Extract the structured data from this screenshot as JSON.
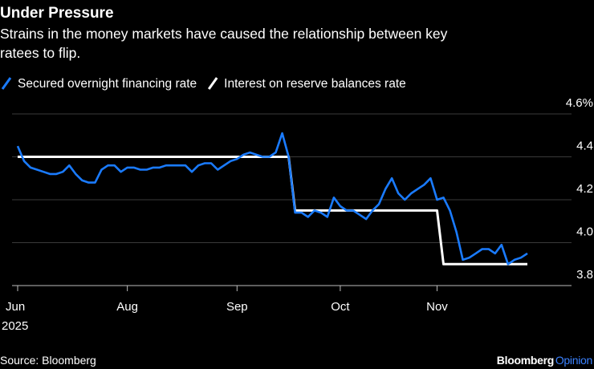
{
  "chart_data": {
    "type": "line",
    "title": "Under Pressure",
    "subtitle": [
      "Strains in the money markets have caused the relationship between key",
      "ratees to flip."
    ],
    "source": "Source: Bloomberg",
    "brand": [
      "Bloomberg",
      "Opinion"
    ],
    "year": "2025",
    "categories": [
      "Jun",
      null,
      null,
      null,
      null,
      null,
      null,
      null,
      null,
      null,
      null,
      null,
      null,
      null,
      null,
      null,
      null,
      "Aug",
      null,
      null,
      null,
      null,
      null,
      null,
      null,
      null,
      null,
      null,
      null,
      null,
      null,
      null,
      null,
      null,
      "Sep",
      null,
      null,
      null,
      null,
      null,
      null,
      null,
      null,
      null,
      null,
      null,
      null,
      null,
      null,
      null,
      "Oct",
      null,
      null,
      null,
      null,
      null,
      null,
      null,
      null,
      null,
      null,
      null,
      null,
      null,
      null,
      "Nov",
      null,
      null,
      null,
      null,
      null,
      null,
      null,
      null,
      null,
      null,
      null,
      null,
      null,
      null
    ],
    "series": [
      {
        "name": "Secured overnight financing rate",
        "color": "#1a7bff",
        "values": [
          4.45,
          4.38,
          4.35,
          4.34,
          4.33,
          4.32,
          4.32,
          4.33,
          4.36,
          4.32,
          4.29,
          4.28,
          4.28,
          4.34,
          4.36,
          4.36,
          4.33,
          4.35,
          4.35,
          4.34,
          4.34,
          4.35,
          4.35,
          4.36,
          4.36,
          4.36,
          4.36,
          4.33,
          4.36,
          4.37,
          4.37,
          4.34,
          4.36,
          4.38,
          4.39,
          4.41,
          4.42,
          4.41,
          4.4,
          4.4,
          4.42,
          4.51,
          4.4,
          4.14,
          4.14,
          4.12,
          4.15,
          4.14,
          4.12,
          4.21,
          4.17,
          4.15,
          4.15,
          4.13,
          4.11,
          4.15,
          4.18,
          4.25,
          4.3,
          4.23,
          4.2,
          4.23,
          4.25,
          4.27,
          4.3,
          4.2,
          4.21,
          4.15,
          4.05,
          3.92,
          3.93,
          3.95,
          3.97,
          3.97,
          3.95,
          3.99,
          3.9,
          3.92,
          3.93,
          3.95
        ]
      },
      {
        "name": "Interest on reserve balances rate",
        "color": "#ffffff",
        "values": [
          4.4,
          4.4,
          4.4,
          4.4,
          4.4,
          4.4,
          4.4,
          4.4,
          4.4,
          4.4,
          4.4,
          4.4,
          4.4,
          4.4,
          4.4,
          4.4,
          4.4,
          4.4,
          4.4,
          4.4,
          4.4,
          4.4,
          4.4,
          4.4,
          4.4,
          4.4,
          4.4,
          4.4,
          4.4,
          4.4,
          4.4,
          4.4,
          4.4,
          4.4,
          4.4,
          4.4,
          4.4,
          4.4,
          4.4,
          4.4,
          4.4,
          4.4,
          4.4,
          4.15,
          4.15,
          4.15,
          4.15,
          4.15,
          4.15,
          4.15,
          4.15,
          4.15,
          4.15,
          4.15,
          4.15,
          4.15,
          4.15,
          4.15,
          4.15,
          4.15,
          4.15,
          4.15,
          4.15,
          4.15,
          4.15,
          4.15,
          3.9,
          3.9,
          3.9,
          3.9,
          3.9,
          3.9,
          3.9,
          3.9,
          3.9,
          3.9,
          3.9,
          3.9,
          3.9,
          3.9
        ]
      }
    ],
    "ylim": [
      3.8,
      4.6
    ],
    "yticks": [
      3.8,
      {
        "value": 4.0,
        "label": "4.0"
      },
      4.2,
      4.4,
      {
        "value": 4.6,
        "label": "4.6%"
      }
    ],
    "grid": true,
    "legend": "top"
  }
}
